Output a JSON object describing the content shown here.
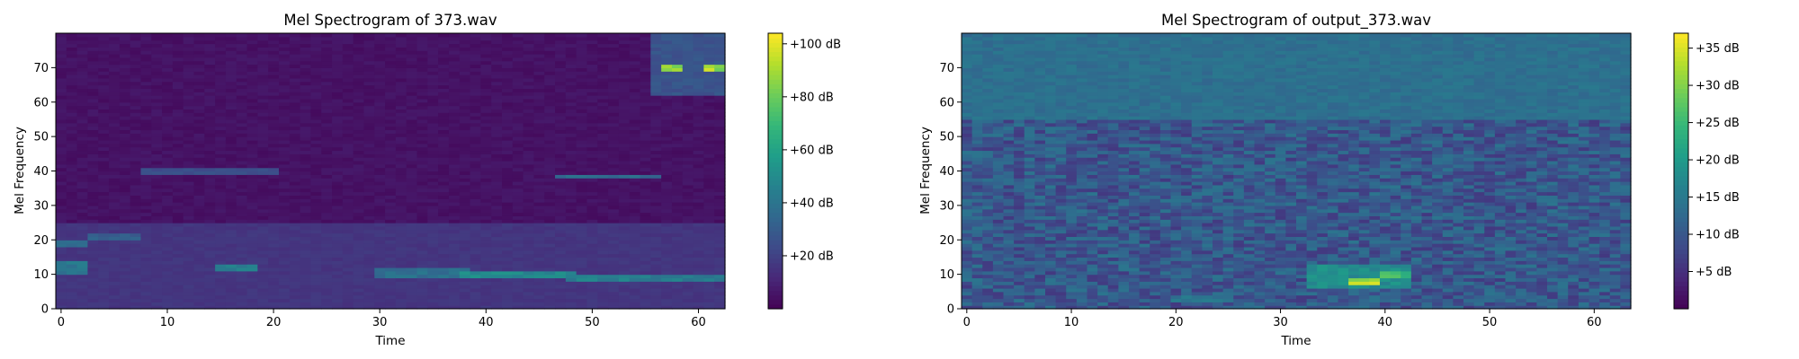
{
  "chart_data": [
    {
      "type": "heatmap",
      "title": "Mel Spectrogram of 373.wav",
      "xlabel": "Time",
      "ylabel": "Mel Frequency",
      "xlim": [
        0,
        62
      ],
      "ylim": [
        0,
        80
      ],
      "x_ticks": [
        "0",
        "10",
        "20",
        "30",
        "40",
        "50",
        "60"
      ],
      "y_ticks": [
        "0",
        "10",
        "20",
        "30",
        "40",
        "50",
        "60",
        "70"
      ],
      "colormap": "viridis",
      "colorbar": {
        "ticks": [
          "+20 dB",
          "+40 dB",
          "+60 dB",
          "+80 dB",
          "+100 dB"
        ],
        "range_db": [
          0,
          104
        ]
      },
      "features": [
        {
          "t": [
            0,
            62
          ],
          "mel": [
            0,
            25
          ],
          "db": 18
        },
        {
          "t": [
            0,
            2
          ],
          "mel": [
            18,
            20
          ],
          "db": 40
        },
        {
          "t": [
            0,
            2
          ],
          "mel": [
            10,
            14
          ],
          "db": 45
        },
        {
          "t": [
            3,
            7
          ],
          "mel": [
            20,
            22
          ],
          "db": 35
        },
        {
          "t": [
            15,
            18
          ],
          "mel": [
            11,
            13
          ],
          "db": 50
        },
        {
          "t": [
            8,
            20
          ],
          "mel": [
            39,
            41
          ],
          "db": 28
        },
        {
          "t": [
            30,
            38
          ],
          "mel": [
            9,
            12
          ],
          "db": 42
        },
        {
          "t": [
            38,
            48
          ],
          "mel": [
            9,
            11
          ],
          "db": 55
        },
        {
          "t": [
            48,
            55
          ],
          "mel": [
            8,
            10
          ],
          "db": 50
        },
        {
          "t": [
            47,
            56
          ],
          "mel": [
            38,
            39
          ],
          "db": 40
        },
        {
          "t": [
            56,
            62
          ],
          "mel": [
            8,
            10
          ],
          "db": 48
        },
        {
          "t": [
            56,
            62
          ],
          "mel": [
            62,
            80
          ],
          "db": 30
        },
        {
          "t": [
            57,
            58
          ],
          "mel": [
            69,
            71
          ],
          "db": 100
        },
        {
          "t": [
            61,
            62
          ],
          "mel": [
            69,
            71
          ],
          "db": 100
        }
      ]
    },
    {
      "type": "heatmap",
      "title": "Mel Spectrogram of output_373.wav",
      "xlabel": "Time",
      "ylabel": "Mel Frequency",
      "xlim": [
        0,
        63
      ],
      "ylim": [
        0,
        80
      ],
      "x_ticks": [
        "0",
        "10",
        "20",
        "30",
        "40",
        "50",
        "60"
      ],
      "y_ticks": [
        "0",
        "10",
        "20",
        "30",
        "40",
        "50",
        "60",
        "70"
      ],
      "colormap": "viridis",
      "colorbar": {
        "ticks": [
          "+5 dB",
          "+10 dB",
          "+15 dB",
          "+20 dB",
          "+25 dB",
          "+30 dB",
          "+35 dB"
        ],
        "range_db": [
          0,
          37
        ]
      },
      "features": [
        {
          "t": [
            0,
            63
          ],
          "mel": [
            55,
            80
          ],
          "db": 15
        },
        {
          "t": [
            33,
            42
          ],
          "mel": [
            6,
            13
          ],
          "db": 20
        },
        {
          "t": [
            37,
            39
          ],
          "mel": [
            7,
            9
          ],
          "db": 36
        },
        {
          "t": [
            40,
            42
          ],
          "mel": [
            9,
            11
          ],
          "db": 28
        },
        {
          "t": [
            20,
            24
          ],
          "mel": [
            2,
            4
          ],
          "db": 16
        },
        {
          "t": [
            49,
            52
          ],
          "mel": [
            2,
            4
          ],
          "db": 14
        }
      ]
    }
  ]
}
